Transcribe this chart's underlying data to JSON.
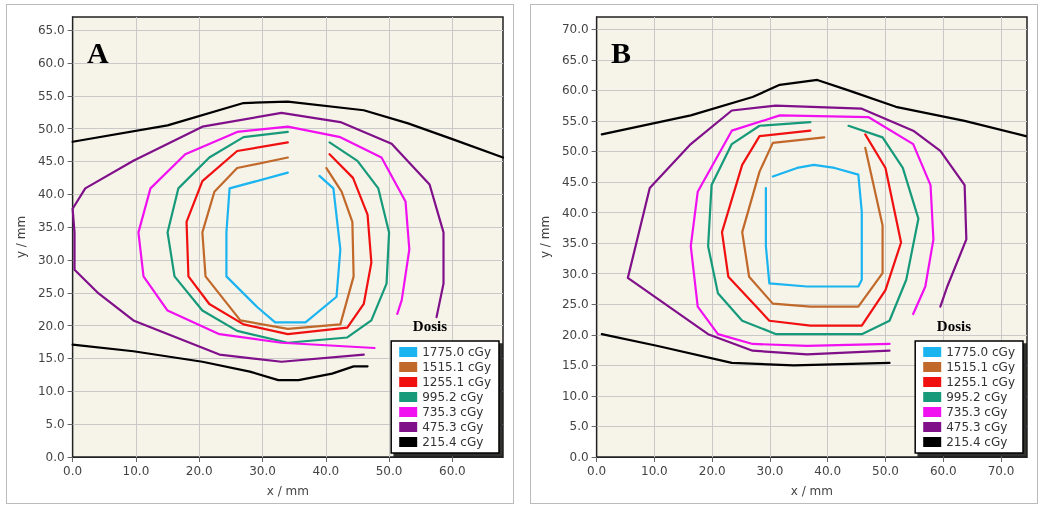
{
  "chart_data": [
    {
      "type": "line",
      "annotations": [
        "A"
      ],
      "xlabel": "x / mm",
      "ylabel": "y / mm",
      "legend_title": "Dosis",
      "legend": "bottom right",
      "grid": true,
      "marker": "none",
      "line_style": "solid",
      "xlim": [
        0,
        68
      ],
      "ylim": [
        0,
        67
      ],
      "xticks": [
        {
          "value": 0,
          "label": "0.0"
        },
        {
          "value": 10,
          "label": "10.0"
        },
        {
          "value": 20,
          "label": "20.0"
        },
        {
          "value": 30,
          "label": "30.0"
        },
        {
          "value": 40,
          "label": "40.0"
        },
        {
          "value": 50,
          "label": "50.0"
        },
        {
          "value": 60,
          "label": "60.0"
        }
      ],
      "yticks": [
        {
          "value": 0,
          "label": "0.0"
        },
        {
          "value": 5,
          "label": "5.0"
        },
        {
          "value": 10,
          "label": "10.0"
        },
        {
          "value": 15,
          "label": "15.0"
        },
        {
          "value": 20,
          "label": "20.0"
        },
        {
          "value": 25,
          "label": "25.0"
        },
        {
          "value": 30,
          "label": "30.0"
        },
        {
          "value": 35,
          "label": "35.0"
        },
        {
          "value": 40,
          "label": "40.0"
        },
        {
          "value": 45,
          "label": "45.0"
        },
        {
          "value": 50,
          "label": "50.0"
        },
        {
          "value": 55,
          "label": "55.0"
        },
        {
          "value": 60,
          "label": "60.0"
        },
        {
          "value": 65,
          "label": "65.0"
        }
      ],
      "series": [
        {
          "name": "1775.0 cGy",
          "color": "#1ab4f0",
          "x": [
            34,
            24.8,
            24.3,
            24.3,
            29.2,
            32,
            36.8,
            41.7,
            42.3,
            41.2,
            39
          ],
          "values": [
            43.3,
            40.9,
            34.2,
            27.5,
            22.8,
            20.5,
            20.5,
            24.4,
            31.6,
            40.9,
            42.8
          ]
        },
        {
          "name": "1515.1 cGy",
          "color": "#c0692a",
          "x": [
            34,
            26,
            22.4,
            20.5,
            21,
            26.5,
            34,
            42.3,
            44.4,
            44.2,
            42.5,
            40.1
          ],
          "values": [
            45.6,
            44,
            40.4,
            34.2,
            27.5,
            20.8,
            19.5,
            20.2,
            27.5,
            35.8,
            40.4,
            44
          ]
        },
        {
          "name": "1255.1 cGy",
          "color": "#f01010",
          "x": [
            34,
            26,
            20.5,
            18,
            18.3,
            21.6,
            27,
            34,
            43.4,
            46,
            47.2,
            46.6,
            44.3,
            40.6
          ],
          "values": [
            47.9,
            46.6,
            42,
            35.8,
            27.5,
            23.3,
            20.2,
            18.7,
            19.7,
            23.3,
            29.6,
            36.9,
            42.5,
            46.1
          ]
        },
        {
          "name": "995.2 cGy",
          "color": "#169a7a",
          "x": [
            34,
            27,
            21.6,
            16.7,
            15,
            16.1,
            20.5,
            26,
            34,
            43.4,
            47.2,
            49.6,
            50,
            48.3,
            45,
            40.6
          ],
          "values": [
            49.5,
            48.7,
            45.6,
            40.9,
            34.2,
            27.5,
            22.3,
            19.2,
            17.4,
            18.2,
            20.8,
            26.4,
            34.2,
            40.9,
            45.1,
            47.9
          ]
        },
        {
          "name": "735.3 cGy",
          "color": "#f010f0",
          "x": [
            47.7,
            33,
            23.2,
            15,
            11.2,
            10.4,
            12.3,
            17.8,
            26,
            34,
            42.3,
            48.8,
            52.6,
            53.2,
            52,
            51.3
          ],
          "values": [
            16.6,
            17.4,
            18.7,
            22.3,
            27.5,
            34.2,
            40.9,
            46.1,
            49.5,
            50.3,
            48.7,
            45.6,
            38.9,
            31.6,
            23.9,
            21.8
          ]
        },
        {
          "name": "475.3 cGy",
          "color": "#80108a",
          "x": [
            46,
            33,
            23.2,
            9.6,
            4.1,
            0.3,
            0.3,
            0,
            2,
            9.6,
            20.5,
            33,
            42.3,
            50.4,
            56.4,
            58.6,
            58.6,
            57.5
          ],
          "values": [
            15.6,
            14.5,
            15.6,
            20.8,
            24.9,
            28.5,
            34.2,
            37.8,
            40.9,
            45.1,
            50.3,
            52.4,
            51,
            47.7,
            41.5,
            34.2,
            26.4,
            21.3
          ]
        },
        {
          "name": "215.4 cGy",
          "color": "#000000",
          "x": [
            0,
            15,
            27,
            34,
            46,
            53,
            60,
            68,
            null,
            0,
            9.6,
            20.5,
            28,
            32.5,
            35.7,
            41,
            44.4,
            46.6
          ],
          "values": [
            48,
            50.5,
            53.9,
            54.1,
            52.8,
            50.8,
            48.4,
            45.6,
            null,
            17.1,
            16.1,
            14.5,
            13,
            11.7,
            11.7,
            12.7,
            13.8,
            13.8
          ]
        }
      ]
    },
    {
      "type": "line",
      "annotations": [
        "B"
      ],
      "xlabel": "x / mm",
      "ylabel": "y / mm",
      "legend_title": "Dosis",
      "legend": "bottom right",
      "grid": true,
      "marker": "none",
      "line_style": "solid",
      "xlim": [
        0,
        74.5
      ],
      "ylim": [
        0,
        72
      ],
      "xticks": [
        {
          "value": 0,
          "label": "0.0"
        },
        {
          "value": 10,
          "label": "10.0"
        },
        {
          "value": 20,
          "label": "20.0"
        },
        {
          "value": 30,
          "label": "30.0"
        },
        {
          "value": 40,
          "label": "40.0"
        },
        {
          "value": 50,
          "label": "50.0"
        },
        {
          "value": 60,
          "label": "60.0"
        },
        {
          "value": 70,
          "label": "70.0"
        }
      ],
      "yticks": [
        {
          "value": 0,
          "label": "0.0"
        },
        {
          "value": 5,
          "label": "5.0"
        },
        {
          "value": 10,
          "label": "10.0"
        },
        {
          "value": 15,
          "label": "15.0"
        },
        {
          "value": 20,
          "label": "20.0"
        },
        {
          "value": 25,
          "label": "25.0"
        },
        {
          "value": 30,
          "label": "30.0"
        },
        {
          "value": 35,
          "label": "35.0"
        },
        {
          "value": 40,
          "label": "40.0"
        },
        {
          "value": 45,
          "label": "45.0"
        },
        {
          "value": 50,
          "label": "50.0"
        },
        {
          "value": 55,
          "label": "55.0"
        },
        {
          "value": 60,
          "label": "60.0"
        },
        {
          "value": 65,
          "label": "65.0"
        },
        {
          "value": 70,
          "label": "70.0"
        }
      ],
      "series": [
        {
          "name": "1775.0 cGy",
          "color": "#1ab4f0",
          "x": [
            30.5,
            34.7,
            37.6,
            41.2,
            45.3,
            45.9,
            45.9,
            45.3,
            36.4,
            29.9,
            29.3,
            29.3
          ],
          "values": [
            45.9,
            47.3,
            47.8,
            47.3,
            46.2,
            40.1,
            29,
            27.9,
            27.9,
            28.4,
            34.5,
            44
          ]
        },
        {
          "name": "1515.1 cGy",
          "color": "#c0692a",
          "x": [
            39.4,
            30.5,
            28.2,
            25.2,
            26.4,
            30.5,
            37,
            45.3,
            49.5,
            49.5,
            46.5
          ],
          "values": [
            52.3,
            51.4,
            46.7,
            36.8,
            29.5,
            25.1,
            24.6,
            24.6,
            30.1,
            37.9,
            50.6
          ]
        },
        {
          "name": "1255.1 cGy",
          "color": "#f01010",
          "x": [
            37,
            28.2,
            25.2,
            21.7,
            22.8,
            29.9,
            37,
            45.9,
            50,
            52.7,
            50,
            46.5
          ],
          "values": [
            53.4,
            52.5,
            47.8,
            36.8,
            29.5,
            22.3,
            21.5,
            21.5,
            27.3,
            35.1,
            47.3,
            52.8
          ]
        },
        {
          "name": "995.2 cGy",
          "color": "#169a7a",
          "x": [
            37,
            28.2,
            23.4,
            19.9,
            19.3,
            21,
            25.2,
            31.1,
            45.9,
            50.7,
            53.6,
            55.7,
            53,
            49.5,
            43.6
          ],
          "values": [
            54.8,
            54.2,
            51.2,
            44.5,
            34.5,
            26.8,
            22.3,
            20.1,
            20.1,
            22.3,
            29,
            39,
            47.3,
            52.3,
            54.2
          ]
        },
        {
          "name": "735.3 cGy",
          "color": "#f010f0",
          "x": [
            50.7,
            36.4,
            27,
            21,
            17.5,
            16.3,
            17.5,
            23.4,
            31.7,
            47.1,
            54.8,
            57.8,
            58.3,
            56.9,
            54.8
          ],
          "values": [
            18.5,
            18.2,
            18.5,
            20.1,
            24.6,
            34.5,
            43.4,
            53.4,
            55.9,
            55.6,
            51.2,
            44.5,
            35.6,
            27.9,
            23.4
          ]
        },
        {
          "name": "475.3 cGy",
          "color": "#80108a",
          "x": [
            50.7,
            36.4,
            27,
            19.3,
            5.4,
            9.2,
            16.3,
            23.4,
            31,
            45.9,
            54.8,
            59.5,
            63.7,
            64,
            60.7,
            59.5
          ],
          "values": [
            17.4,
            16.8,
            17.4,
            20.1,
            29.3,
            44,
            51.2,
            56.7,
            57.5,
            57,
            53.4,
            50.1,
            44.5,
            35.6,
            27.9,
            24.6
          ]
        },
        {
          "name": "215.4 cGy",
          "color": "#000000",
          "x": [
            0.9,
            16.3,
            27,
            31.7,
            38.2,
            43.6,
            51.8,
            63.7,
            74.3,
            null,
            0.9,
            10.4,
            23.4,
            34.1,
            50.7
          ],
          "values": [
            52.8,
            55.9,
            58.9,
            60.9,
            61.7,
            60,
            57.3,
            55,
            52.5,
            null,
            20.1,
            18.2,
            15.4,
            15,
            15.4
          ]
        }
      ]
    }
  ]
}
